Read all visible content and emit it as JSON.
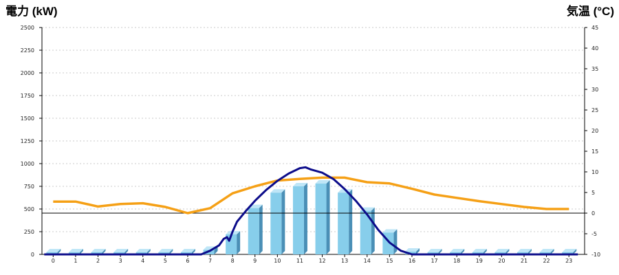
{
  "chart_data": {
    "type": "bar",
    "left_axis_title": "電力 (kW)",
    "right_axis_title": "気温 (°C)",
    "colors": {
      "left_title": "#1a5fa3",
      "right_title": "#e8791b",
      "bar_front": "#87ceeb",
      "bar_side": "#4a8fb6",
      "bar_top": "#bfe6f7",
      "line_power": "#0c0c8a",
      "line_temp": "#f5a016",
      "grid": "#c8c8c8",
      "axis": "#000000"
    },
    "categories": [
      "0",
      "1",
      "2",
      "3",
      "4",
      "5",
      "6",
      "7",
      "8",
      "9",
      "10",
      "11",
      "12",
      "13",
      "14",
      "15",
      "16",
      "17",
      "18",
      "19",
      "20",
      "21",
      "22",
      "23"
    ],
    "ylim_left": [
      0,
      2500
    ],
    "yticks_left": [
      "0",
      "250",
      "500",
      "750",
      "1000",
      "1250",
      "1500",
      "1750",
      "2000",
      "2250",
      "2500"
    ],
    "ylim_right": [
      -10,
      45
    ],
    "yticks_right": [
      "-10",
      "-5",
      "0",
      "5",
      "10",
      "15",
      "20",
      "25",
      "30",
      "35",
      "40",
      "45"
    ],
    "grid": true,
    "series": [
      {
        "type": "bar",
        "axis": "left",
        "values": [
          0,
          0,
          0,
          0,
          0,
          0,
          0,
          50,
          220,
          510,
          680,
          750,
          780,
          680,
          480,
          240,
          30,
          0,
          0,
          0,
          0,
          0,
          0,
          0
        ]
      },
      {
        "type": "line",
        "axis": "left",
        "points": [
          [
            -0.4,
            0
          ],
          [
            6.6,
            0
          ],
          [
            7.0,
            40
          ],
          [
            7.4,
            100
          ],
          [
            7.6,
            170
          ],
          [
            7.75,
            190
          ],
          [
            7.85,
            150
          ],
          [
            8.0,
            250
          ],
          [
            8.2,
            360
          ],
          [
            8.6,
            480
          ],
          [
            9.0,
            590
          ],
          [
            9.5,
            710
          ],
          [
            10.0,
            810
          ],
          [
            10.5,
            890
          ],
          [
            11.0,
            950
          ],
          [
            11.25,
            960
          ],
          [
            11.5,
            935
          ],
          [
            12.0,
            900
          ],
          [
            12.5,
            830
          ],
          [
            13.0,
            720
          ],
          [
            13.5,
            590
          ],
          [
            14.0,
            440
          ],
          [
            14.5,
            270
          ],
          [
            15.0,
            130
          ],
          [
            15.5,
            40
          ],
          [
            16.0,
            0
          ],
          [
            23.4,
            0
          ]
        ]
      },
      {
        "type": "line",
        "axis": "right",
        "values": [
          2.8,
          2.8,
          1.6,
          2.2,
          2.4,
          1.5,
          0.0,
          1.2,
          4.8,
          6.5,
          7.9,
          8.3,
          8.6,
          8.6,
          7.5,
          7.2,
          5.9,
          4.5,
          3.7,
          2.9,
          2.2,
          1.5,
          1.0,
          1.0
        ]
      },
      {
        "type": "reference-line",
        "axis": "right",
        "value": 0
      }
    ]
  }
}
